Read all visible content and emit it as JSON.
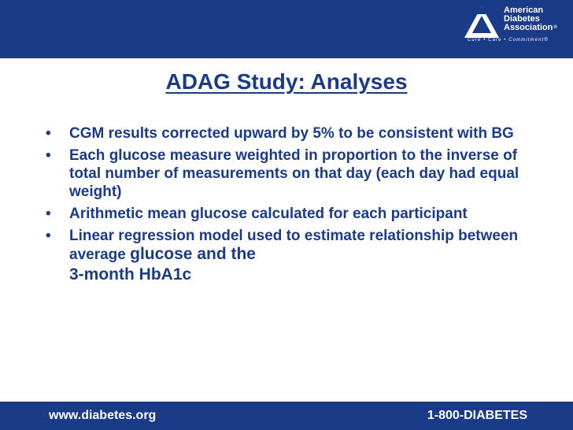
{
  "header": {
    "logo": {
      "line1": "American",
      "line2": "Diabetes",
      "line3": "Association",
      "reg": "®",
      "tagline": "Cure • Care • Commitment®"
    }
  },
  "slide": {
    "title": "ADAG Study: Analyses",
    "bullets": [
      {
        "text": "CGM results corrected upward by 5% to be consistent with BG"
      },
      {
        "text": "Each glucose measure weighted in proportion to the inverse of total number of measurements on that day (each day had equal weight)"
      },
      {
        "text": "Arithmetic mean glucose calculated for each participant"
      },
      {
        "text_a": "Linear regression model used to estimate relationship between average ",
        "text_b": "glucose and the",
        "text_c": "3-month HbA1c"
      }
    ]
  },
  "footer": {
    "url": "www.diabetes.org",
    "phone": "1-800-DIABETES"
  },
  "colors": {
    "brand": "#1a3b88",
    "text": "#1a3b88",
    "background": "#ffffff"
  }
}
